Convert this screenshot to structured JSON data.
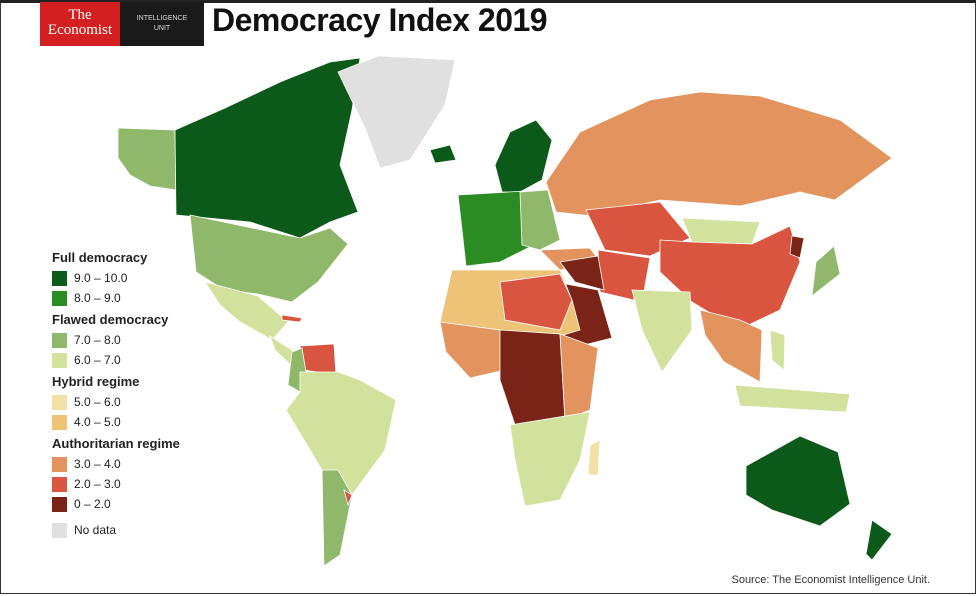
{
  "header": {
    "logo_line1": "The",
    "logo_line2": "Economist",
    "unit_line1": "INTELLIGENCE",
    "unit_line2": "UNIT",
    "title": "Democracy Index 2019"
  },
  "colors": {
    "c9_10": "#0b5a1a",
    "c8_9": "#2a8c22",
    "c7_8": "#8fb86a",
    "c6_7": "#d2e29c",
    "c5_6": "#f3e0a4",
    "c4_5": "#eec277",
    "c3_4": "#e3945e",
    "c2_3": "#d9553f",
    "c0_2": "#7a2418",
    "nodata": "#e0e0e0"
  },
  "legend": [
    {
      "heading": "Full democracy",
      "items": [
        {
          "label": "9.0 – 10.0",
          "color": "#0b5a1a"
        },
        {
          "label": "8.0 – 9.0",
          "color": "#2a8c22"
        }
      ]
    },
    {
      "heading": "Flawed democracy",
      "items": [
        {
          "label": "7.0 – 8.0",
          "color": "#8fb86a"
        },
        {
          "label": "6.0 – 7.0",
          "color": "#d2e29c"
        }
      ]
    },
    {
      "heading": "Hybrid regime",
      "items": [
        {
          "label": "5.0 – 6.0",
          "color": "#f3e0a4"
        },
        {
          "label": "4.0 – 5.0",
          "color": "#eec277"
        }
      ]
    },
    {
      "heading": "Authoritarian regime",
      "items": [
        {
          "label": "3.0 – 4.0",
          "color": "#e3945e"
        },
        {
          "label": "2.0 – 3.0",
          "color": "#d9553f"
        },
        {
          "label": "0 – 2.0",
          "color": "#7a2418"
        }
      ]
    }
  ],
  "nodata_label": "No data",
  "source": "Source: The Economist Intelligence Unit."
}
